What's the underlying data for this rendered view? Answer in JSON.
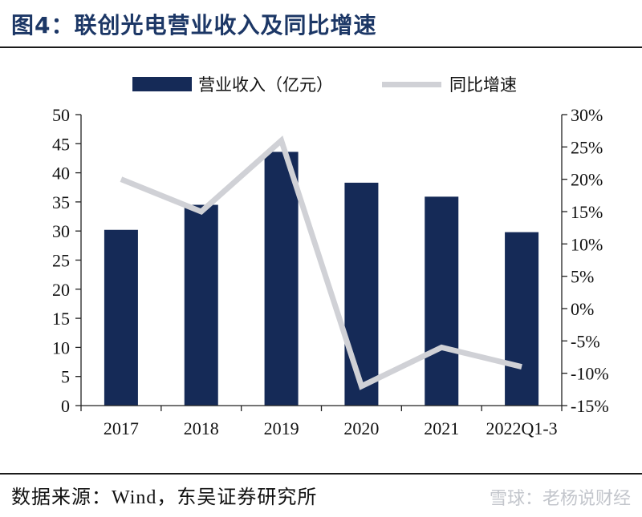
{
  "header": {
    "title": "图4：联创光电营业收入及同比增速"
  },
  "legend": {
    "bar_label": "营业收入（亿元）",
    "line_label": "同比增速"
  },
  "footer": {
    "source_prefix": "数据来源：",
    "source_main": "Wind，东吴证券研究所",
    "watermark": "雪球：老杨说财经"
  },
  "colors": {
    "bar": "#152a57",
    "line": "#d0d1d6",
    "title": "#1c3766"
  },
  "chart_data": {
    "type": "bar",
    "categories": [
      "2017",
      "2018",
      "2019",
      "2020",
      "2021",
      "2022Q1-3"
    ],
    "series": [
      {
        "name": "营业收入（亿元）",
        "type": "bar",
        "axis": "left",
        "values": [
          30.2,
          34.5,
          43.6,
          38.3,
          35.9,
          29.8
        ]
      },
      {
        "name": "同比增速",
        "type": "line",
        "axis": "right",
        "values": [
          20.0,
          15.0,
          26.0,
          -12.0,
          -6.0,
          -9.0
        ]
      }
    ],
    "y_left": {
      "min": 0,
      "max": 50,
      "step": 5,
      "ticks": [
        "0",
        "5",
        "10",
        "15",
        "20",
        "25",
        "30",
        "35",
        "40",
        "45",
        "50"
      ]
    },
    "y_right": {
      "min": -15,
      "max": 30,
      "step": 5,
      "ticks": [
        "-15%",
        "-10%",
        "-5%",
        "0%",
        "5%",
        "10%",
        "15%",
        "20%",
        "25%",
        "30%"
      ]
    },
    "grid": false,
    "legend_position": "top"
  }
}
